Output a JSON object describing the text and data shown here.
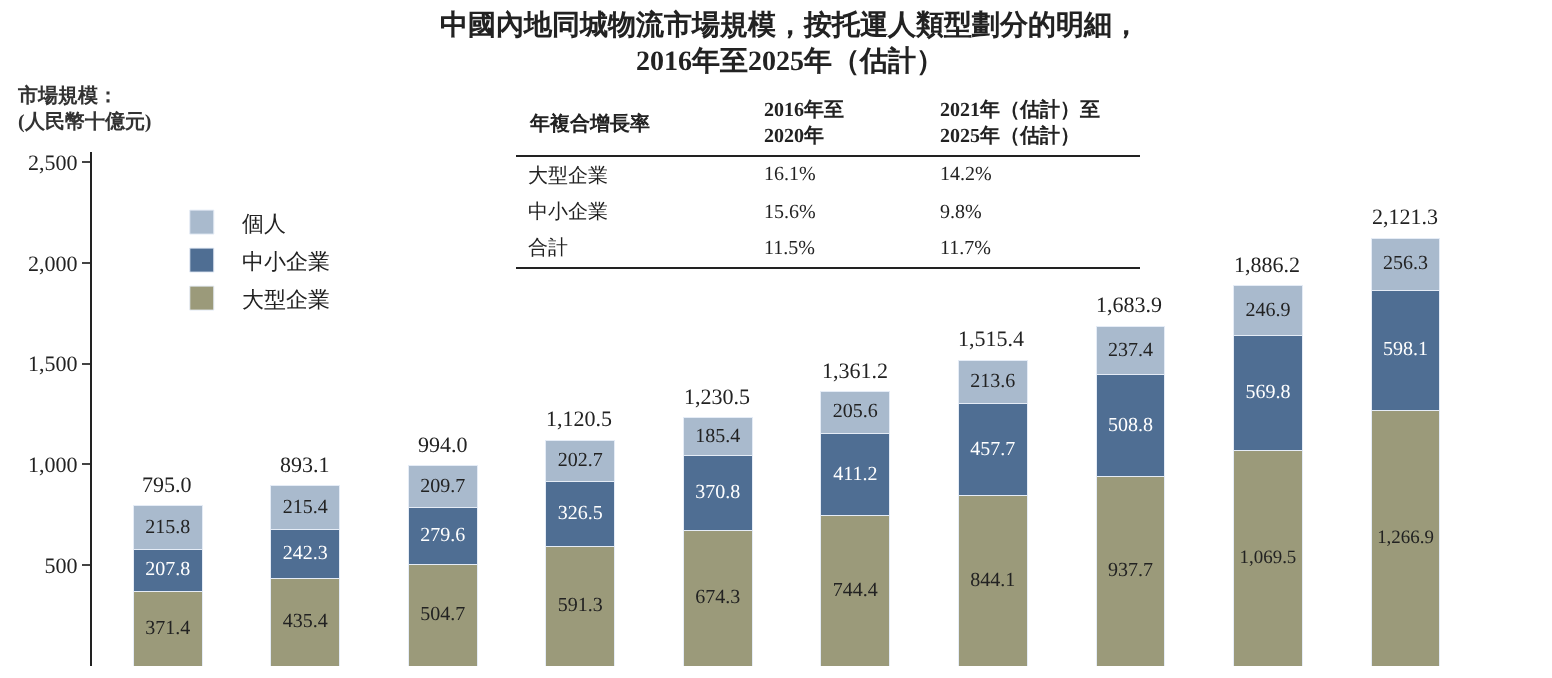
{
  "chart_data": {
    "type": "bar",
    "stacked": true,
    "title": "中國內地同城物流市場規模，按托運人類型劃分的明細，\n2016年至2025年（估計）",
    "ylabel": "市場規模：\n(人民幣十億元)",
    "categories": [
      null,
      null,
      null,
      null,
      null,
      null,
      null,
      null,
      null,
      null
    ],
    "series": [
      {
        "name": "大型企業",
        "color": "#9b9a7a",
        "values": [
          371.4,
          435.4,
          504.7,
          591.3,
          674.3,
          744.4,
          844.1,
          937.7,
          1069.5,
          1266.9
        ],
        "value_labels": [
          "371.4",
          "435.4",
          "504.7",
          "591.3",
          "674.3",
          "744.4",
          "844.1",
          "937.7",
          "1,069.5",
          "1,266.9"
        ]
      },
      {
        "name": "中小企業",
        "color": "#4f6e93",
        "values": [
          207.8,
          242.3,
          279.6,
          326.5,
          370.8,
          411.2,
          457.7,
          508.8,
          569.8,
          598.1
        ],
        "value_labels": [
          "207.8",
          "242.3",
          "279.6",
          "326.5",
          "370.8",
          "411.2",
          "457.7",
          "508.8",
          "569.8",
          "598.1"
        ]
      },
      {
        "name": "個人",
        "color": "#a9bacd",
        "values": [
          215.8,
          215.4,
          209.7,
          202.7,
          185.4,
          205.6,
          213.6,
          237.4,
          246.9,
          256.3
        ],
        "value_labels": [
          "215.8",
          "215.4",
          "209.7",
          "202.7",
          "185.4",
          "205.6",
          "213.6",
          "237.4",
          "246.9",
          "256.3"
        ]
      }
    ],
    "totals": [
      "795.0",
      "893.1",
      "994.0",
      "1,120.5",
      "1,230.5",
      "1,361.2",
      "1,515.4",
      "1,683.9",
      "1,886.2",
      "2,121.3"
    ],
    "ylim": [
      0,
      2550
    ],
    "yticks": [
      {
        "value": 500,
        "label": "500"
      },
      {
        "value": 1000,
        "label": "1,000"
      },
      {
        "value": 1500,
        "label": "1,500"
      },
      {
        "value": 2000,
        "label": "2,000"
      },
      {
        "value": 2500,
        "label": "2,500"
      }
    ],
    "legend": "top left",
    "annotations": [
      "年複合增長率",
      "2016年至\n2020年",
      "2021年（估計）至\n2025年（估計）",
      "大型企業",
      "16.1%",
      "14.2%",
      "中小企業",
      "15.6%",
      "9.8%",
      "合計",
      "11.5%",
      "11.7%"
    ]
  }
}
